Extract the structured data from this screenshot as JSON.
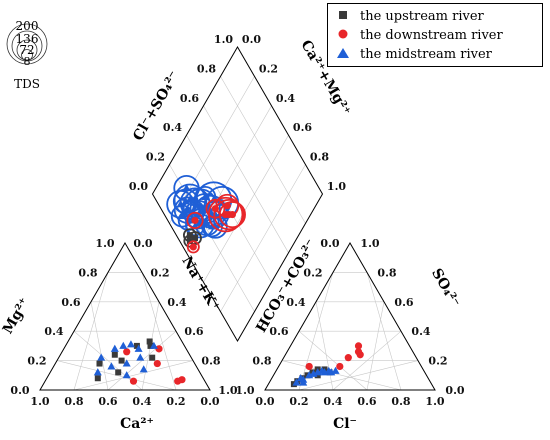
{
  "chart_data": {
    "type": "piper",
    "legend": [
      {
        "name": "the upstream river",
        "color": "#3a3a3a",
        "marker": "square"
      },
      {
        "name": "the downstream river",
        "color": "#e8262a",
        "marker": "circle"
      },
      {
        "name": "the midstream river",
        "color": "#1f5fd6",
        "marker": "triangle"
      }
    ],
    "tds_legend": {
      "title": "TDS",
      "sizes": [
        "200",
        "136",
        "72",
        "8"
      ]
    },
    "cation_triangle": {
      "bottom_axis_label": "Ca²⁺",
      "left_axis_label": "Mg²⁺",
      "right_axis_label": "Na⁺+K⁺",
      "ticks": [
        "0.0",
        "0.2",
        "0.4",
        "0.6",
        "0.8",
        "1.0"
      ],
      "points": [
        {
          "series": 0,
          "ca": 0.74,
          "mg": 0.18
        },
        {
          "series": 0,
          "ca": 0.68,
          "mg": 0.24
        },
        {
          "series": 0,
          "ca": 0.58,
          "mg": 0.3
        },
        {
          "series": 0,
          "ca": 0.52,
          "mg": 0.33
        },
        {
          "series": 0,
          "ca": 0.5,
          "mg": 0.3
        },
        {
          "series": 0,
          "ca": 0.6,
          "mg": 0.12
        },
        {
          "series": 0,
          "ca": 0.45,
          "mg": 0.22
        },
        {
          "series": 0,
          "ca": 0.7,
          "mg": 0.08
        },
        {
          "series": 0,
          "ca": 0.62,
          "mg": 0.2
        },
        {
          "series": 1,
          "ca": 0.48,
          "mg": 0.06
        },
        {
          "series": 1,
          "ca": 0.4,
          "mg": 0.18
        },
        {
          "series": 1,
          "ca": 0.62,
          "mg": 0.26
        },
        {
          "series": 1,
          "ca": 0.22,
          "mg": 0.06
        },
        {
          "series": 1,
          "ca": 0.2,
          "mg": 0.07
        },
        {
          "series": 1,
          "ca": 0.44,
          "mg": 0.28
        },
        {
          "series": 2,
          "ca": 0.75,
          "mg": 0.22
        },
        {
          "series": 2,
          "ca": 0.7,
          "mg": 0.28
        },
        {
          "series": 2,
          "ca": 0.66,
          "mg": 0.3
        },
        {
          "series": 2,
          "ca": 0.62,
          "mg": 0.31
        },
        {
          "series": 2,
          "ca": 0.56,
          "mg": 0.28
        },
        {
          "series": 2,
          "ca": 0.52,
          "mg": 0.22
        },
        {
          "series": 2,
          "ca": 0.48,
          "mg": 0.3
        },
        {
          "series": 2,
          "ca": 0.58,
          "mg": 0.18
        },
        {
          "series": 2,
          "ca": 0.66,
          "mg": 0.16
        },
        {
          "series": 2,
          "ca": 0.72,
          "mg": 0.12
        },
        {
          "series": 2,
          "ca": 0.46,
          "mg": 0.14
        },
        {
          "series": 2,
          "ca": 0.54,
          "mg": 0.1
        }
      ]
    },
    "anion_triangle": {
      "bottom_axis_label": "Cl⁻",
      "left_axis_label": "HCO₃⁻+CO₃²⁻",
      "right_axis_label": "SO₄²⁻",
      "ticks": [
        "0.0",
        "0.2",
        "0.4",
        "0.6",
        "0.8",
        "1.0"
      ],
      "points": [
        {
          "series": 0,
          "cl": 0.15,
          "so4": 0.04
        },
        {
          "series": 0,
          "cl": 0.16,
          "so4": 0.06
        },
        {
          "series": 0,
          "cl": 0.18,
          "so4": 0.08
        },
        {
          "series": 0,
          "cl": 0.2,
          "so4": 0.1
        },
        {
          "series": 0,
          "cl": 0.22,
          "so4": 0.12
        },
        {
          "series": 0,
          "cl": 0.24,
          "so4": 0.14
        },
        {
          "series": 0,
          "cl": 0.28,
          "so4": 0.14
        },
        {
          "series": 0,
          "cl": 0.32,
          "so4": 0.12
        },
        {
          "series": 0,
          "cl": 0.26,
          "so4": 0.1
        },
        {
          "series": 1,
          "cl": 0.18,
          "so4": 0.16
        },
        {
          "series": 1,
          "cl": 0.38,
          "so4": 0.22
        },
        {
          "series": 1,
          "cl": 0.42,
          "so4": 0.26
        },
        {
          "series": 1,
          "cl": 0.44,
          "so4": 0.24
        },
        {
          "series": 1,
          "cl": 0.4,
          "so4": 0.3
        },
        {
          "series": 1,
          "cl": 0.36,
          "so4": 0.16
        },
        {
          "series": 2,
          "cl": 0.16,
          "so4": 0.05
        },
        {
          "series": 2,
          "cl": 0.17,
          "so4": 0.08
        },
        {
          "series": 2,
          "cl": 0.19,
          "so4": 0.07
        },
        {
          "series": 2,
          "cl": 0.21,
          "so4": 0.1
        },
        {
          "series": 2,
          "cl": 0.23,
          "so4": 0.11
        },
        {
          "series": 2,
          "cl": 0.25,
          "so4": 0.12
        },
        {
          "series": 2,
          "cl": 0.27,
          "so4": 0.13
        },
        {
          "series": 2,
          "cl": 0.29,
          "so4": 0.12
        },
        {
          "series": 2,
          "cl": 0.31,
          "so4": 0.13
        },
        {
          "series": 2,
          "cl": 0.33,
          "so4": 0.12
        },
        {
          "series": 2,
          "cl": 0.35,
          "so4": 0.13
        },
        {
          "series": 2,
          "cl": 0.2,
          "so4": 0.05
        }
      ]
    },
    "diamond": {
      "upper_left_label": "Cl⁻+SO₄²⁻",
      "upper_right_label": "Ca²⁺+Mg²⁺",
      "lower_left_label": "Na⁺+K⁺",
      "lower_right_label": "HCO₃⁻+CO₃²⁻",
      "ticks": [
        "0.0",
        "0.2",
        "0.4",
        "0.6",
        "0.8",
        "1.0"
      ],
      "points": [
        {
          "series": 2,
          "cm": 0.8,
          "cs": 0.13,
          "tds": 80
        },
        {
          "series": 2,
          "cm": 0.78,
          "cs": 0.17,
          "tds": 60
        },
        {
          "series": 2,
          "cm": 0.76,
          "cs": 0.2,
          "tds": 110
        },
        {
          "series": 2,
          "cm": 0.74,
          "cs": 0.15,
          "tds": 70
        },
        {
          "series": 2,
          "cm": 0.72,
          "cs": 0.22,
          "tds": 95
        },
        {
          "series": 2,
          "cm": 0.7,
          "cs": 0.18,
          "tds": 50
        },
        {
          "series": 2,
          "cm": 0.68,
          "cs": 0.24,
          "tds": 130
        },
        {
          "series": 2,
          "cm": 0.66,
          "cs": 0.2,
          "tds": 85
        },
        {
          "series": 2,
          "cm": 0.64,
          "cs": 0.26,
          "tds": 100
        },
        {
          "series": 2,
          "cm": 0.62,
          "cs": 0.18,
          "tds": 90
        },
        {
          "series": 2,
          "cm": 0.6,
          "cs": 0.28,
          "tds": 120
        },
        {
          "series": 2,
          "cm": 0.58,
          "cs": 0.22,
          "tds": 60
        },
        {
          "series": 2,
          "cm": 0.56,
          "cs": 0.3,
          "tds": 75
        },
        {
          "series": 2,
          "cm": 0.54,
          "cs": 0.24,
          "tds": 40
        },
        {
          "series": 2,
          "cm": 0.52,
          "cs": 0.26,
          "tds": 55
        },
        {
          "series": 2,
          "cm": 0.75,
          "cs": 0.1,
          "tds": 45
        },
        {
          "series": 2,
          "cm": 0.7,
          "cs": 0.12,
          "tds": 35
        },
        {
          "series": 2,
          "cm": 0.82,
          "cs": 0.22,
          "tds": 65
        },
        {
          "series": 2,
          "cm": 0.68,
          "cs": 0.3,
          "tds": 40
        },
        {
          "series": 2,
          "cm": 0.62,
          "cs": 0.34,
          "tds": 150
        },
        {
          "series": 2,
          "cm": 0.56,
          "cs": 0.38,
          "tds": 120
        },
        {
          "series": 2,
          "cm": 0.64,
          "cs": 0.14,
          "tds": 30
        },
        {
          "series": 1,
          "cm": 0.5,
          "cs": 0.36,
          "tds": 136
        },
        {
          "series": 1,
          "cm": 0.48,
          "cs": 0.38,
          "tds": 100
        },
        {
          "series": 1,
          "cm": 0.46,
          "cs": 0.4,
          "tds": 70
        },
        {
          "series": 1,
          "cm": 0.52,
          "cs": 0.4,
          "tds": 50
        },
        {
          "series": 1,
          "cm": 0.58,
          "cs": 0.32,
          "tds": 30
        },
        {
          "series": 1,
          "cm": 0.66,
          "cs": 0.16,
          "tds": 20
        },
        {
          "series": 0,
          "cm": 0.64,
          "cs": 0.08,
          "tds": 10
        },
        {
          "series": 0,
          "cm": 0.62,
          "cs": 0.06,
          "tds": 8
        },
        {
          "series": 0,
          "cm": 0.6,
          "cs": 0.1,
          "tds": 10
        },
        {
          "series": 1,
          "cm": 0.58,
          "cs": 0.06,
          "tds": 8
        }
      ]
    }
  }
}
